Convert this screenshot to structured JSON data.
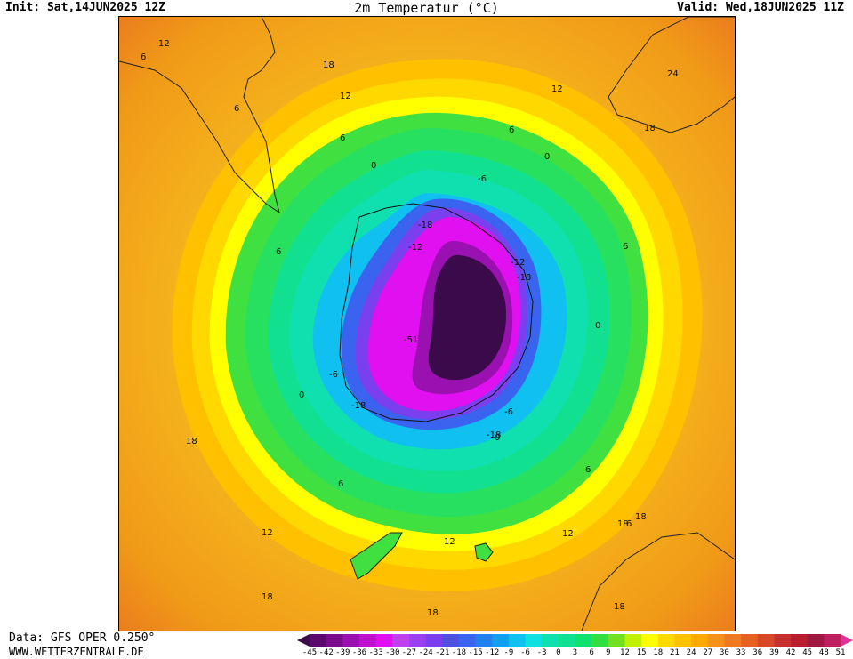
{
  "header": {
    "init": "Init: Sat,14JUN2025 12Z",
    "title": "2m Temperatur (°C)",
    "valid": "Valid: Wed,18JUN2025 11Z"
  },
  "footer": {
    "data_source": "Data: GFS OPER 0.250°",
    "website": "WWW.WETTERZENTRALE.DE"
  },
  "legend": {
    "values": [
      "-45",
      "-42",
      "-39",
      "-36",
      "-33",
      "-30",
      "-27",
      "-24",
      "-21",
      "-18",
      "-15",
      "-12",
      "-9",
      "-6",
      "-3",
      "0",
      "3",
      "6",
      "9",
      "12",
      "15",
      "18",
      "21",
      "24",
      "27",
      "30",
      "33",
      "36",
      "39",
      "42",
      "45",
      "48",
      "51"
    ],
    "colors": [
      "#3a0a4a",
      "#5a0a6e",
      "#7a0a8e",
      "#9a10b0",
      "#c010d0",
      "#e010f0",
      "#c040f0",
      "#9a40f0",
      "#7a40f0",
      "#5050e0",
      "#3a64f0",
      "#2080f0",
      "#10a0f0",
      "#10c0f0",
      "#10e0e0",
      "#10e0b0",
      "#10e090",
      "#10e070",
      "#30e040",
      "#70e020",
      "#c0f000",
      "#ffff00",
      "#ffd800",
      "#ffc000",
      "#ffa800",
      "#f59018",
      "#f07820",
      "#e86020",
      "#d84828",
      "#c83030",
      "#b81e30",
      "#a01840",
      "#c02060",
      "#e03090"
    ]
  },
  "map": {
    "contour_labels": [
      {
        "text": "12"
      },
      {
        "text": "6"
      },
      {
        "text": "18"
      },
      {
        "text": "12"
      },
      {
        "text": "12"
      },
      {
        "text": "24"
      },
      {
        "text": "6"
      },
      {
        "text": "18"
      },
      {
        "text": "6"
      },
      {
        "text": "6"
      },
      {
        "text": "0"
      },
      {
        "text": "0"
      },
      {
        "text": "-6"
      },
      {
        "text": "-18"
      },
      {
        "text": "-12"
      },
      {
        "text": "-12"
      },
      {
        "text": "-18"
      },
      {
        "text": "6"
      },
      {
        "text": "6"
      },
      {
        "text": "0"
      },
      {
        "text": "-51"
      },
      {
        "text": "-6"
      },
      {
        "text": "0"
      },
      {
        "text": "-18"
      },
      {
        "text": "-6"
      },
      {
        "text": "-18"
      },
      {
        "text": "0"
      },
      {
        "text": "18"
      },
      {
        "text": "6"
      },
      {
        "text": "6"
      },
      {
        "text": "12"
      },
      {
        "text": "18"
      },
      {
        "text": "18"
      },
      {
        "text": "12"
      },
      {
        "text": "12"
      },
      {
        "text": "18"
      },
      {
        "text": "18"
      },
      {
        "text": "18"
      },
      {
        "text": "6"
      }
    ]
  }
}
